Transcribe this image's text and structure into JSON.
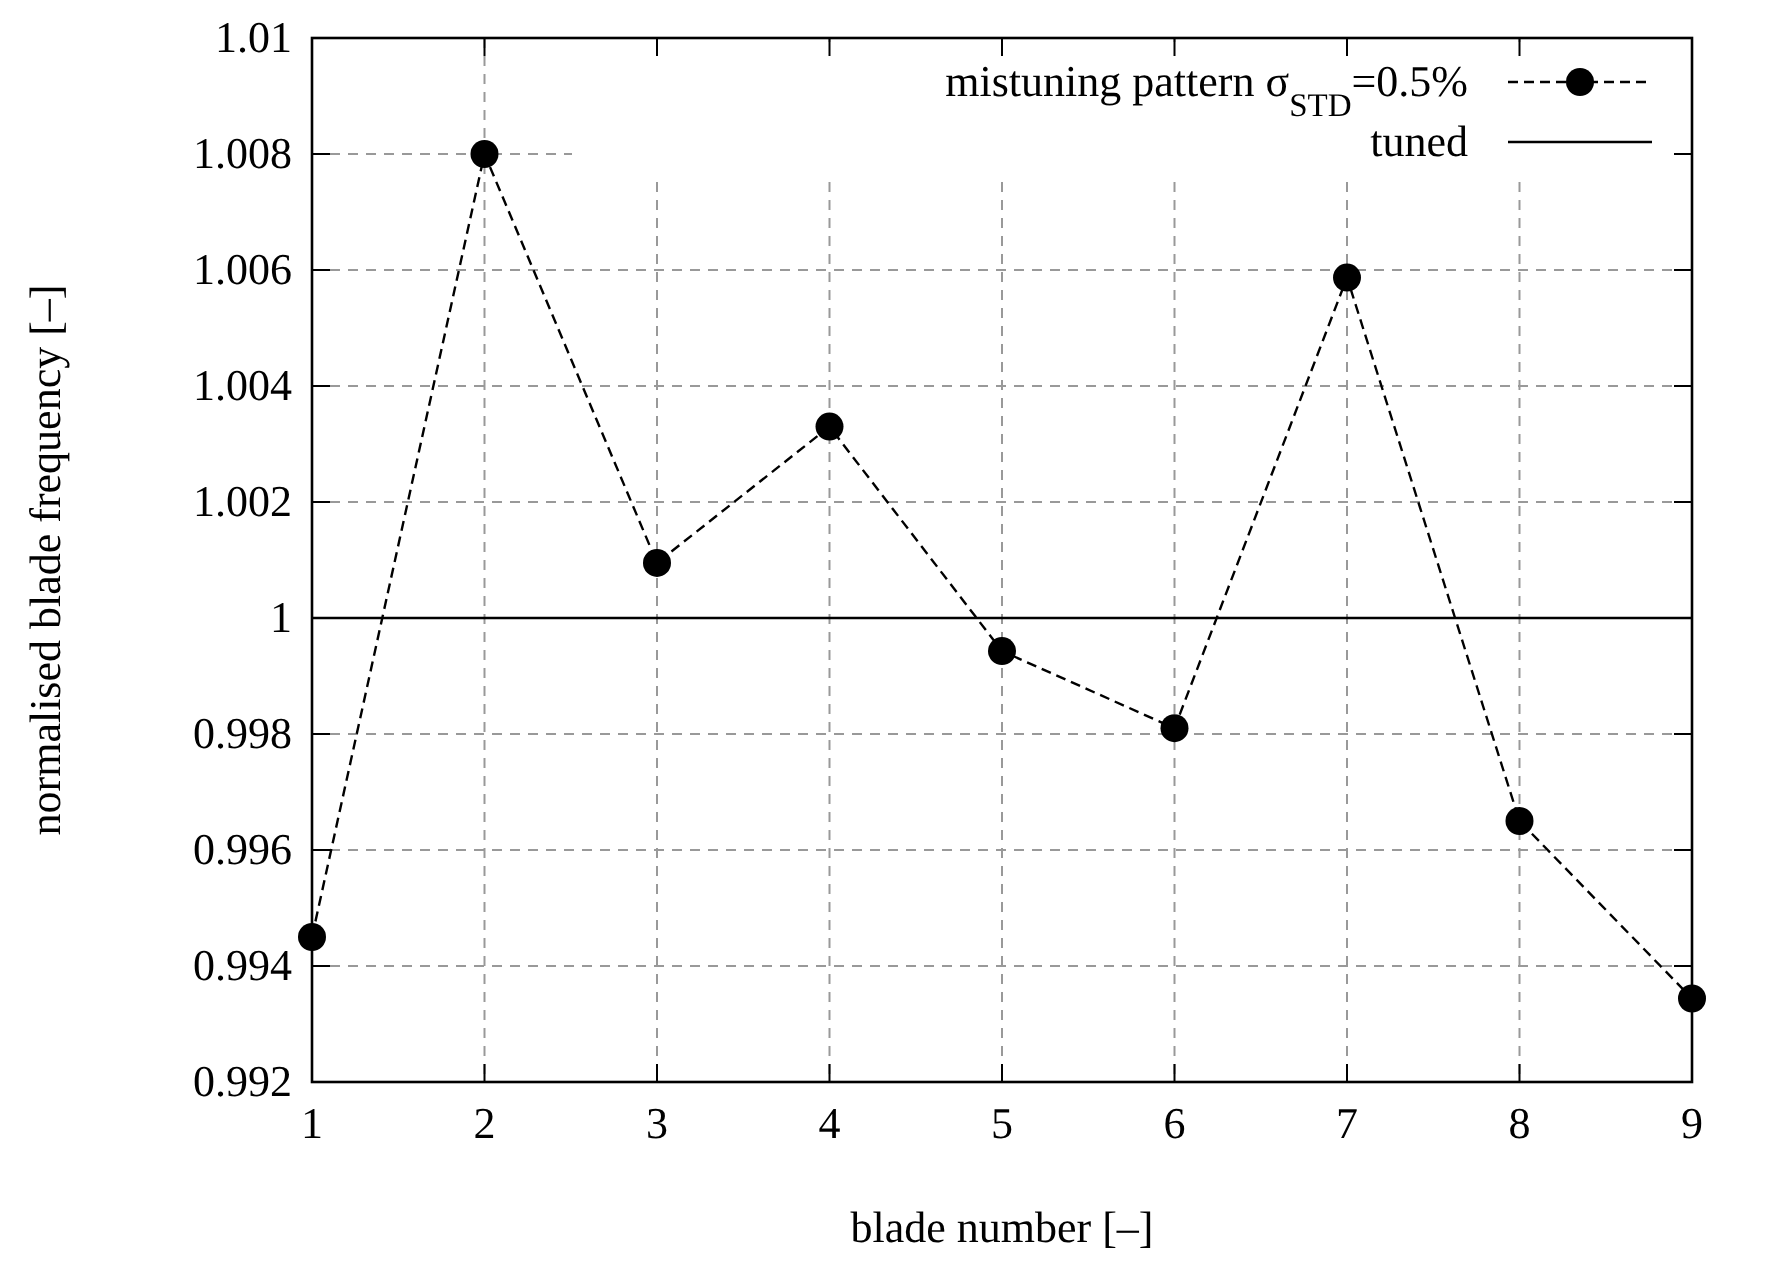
{
  "chart_data": {
    "type": "line",
    "xlabel": "blade number [–]",
    "ylabel": "normalised blade frequency [–]",
    "x": [
      1,
      2,
      3,
      4,
      5,
      6,
      7,
      8,
      9
    ],
    "series": [
      {
        "name": "mistuning pattern σ$_{STD}$=0.5%",
        "color": "#000000",
        "values": [
          0.9945,
          1.008,
          1.00095,
          1.0033,
          0.99943,
          0.9981,
          1.00587,
          0.9965,
          0.99344
        ],
        "marker": "circle",
        "line_style": "dashed"
      },
      {
        "name": "tuned",
        "color": "#000000",
        "values": [
          1,
          1,
          1,
          1,
          1,
          1,
          1,
          1,
          1
        ],
        "marker": "none",
        "line_style": "solid"
      }
    ],
    "xlim": [
      1,
      9
    ],
    "xticks": [
      1,
      2,
      3,
      4,
      5,
      6,
      7,
      8,
      9
    ],
    "ylim": [
      0.992,
      1.01
    ],
    "yticks": [
      0.992,
      0.994,
      0.996,
      0.998,
      1,
      1.002,
      1.004,
      1.006,
      1.008,
      1.01
    ],
    "grid": true,
    "legend": "top right"
  }
}
